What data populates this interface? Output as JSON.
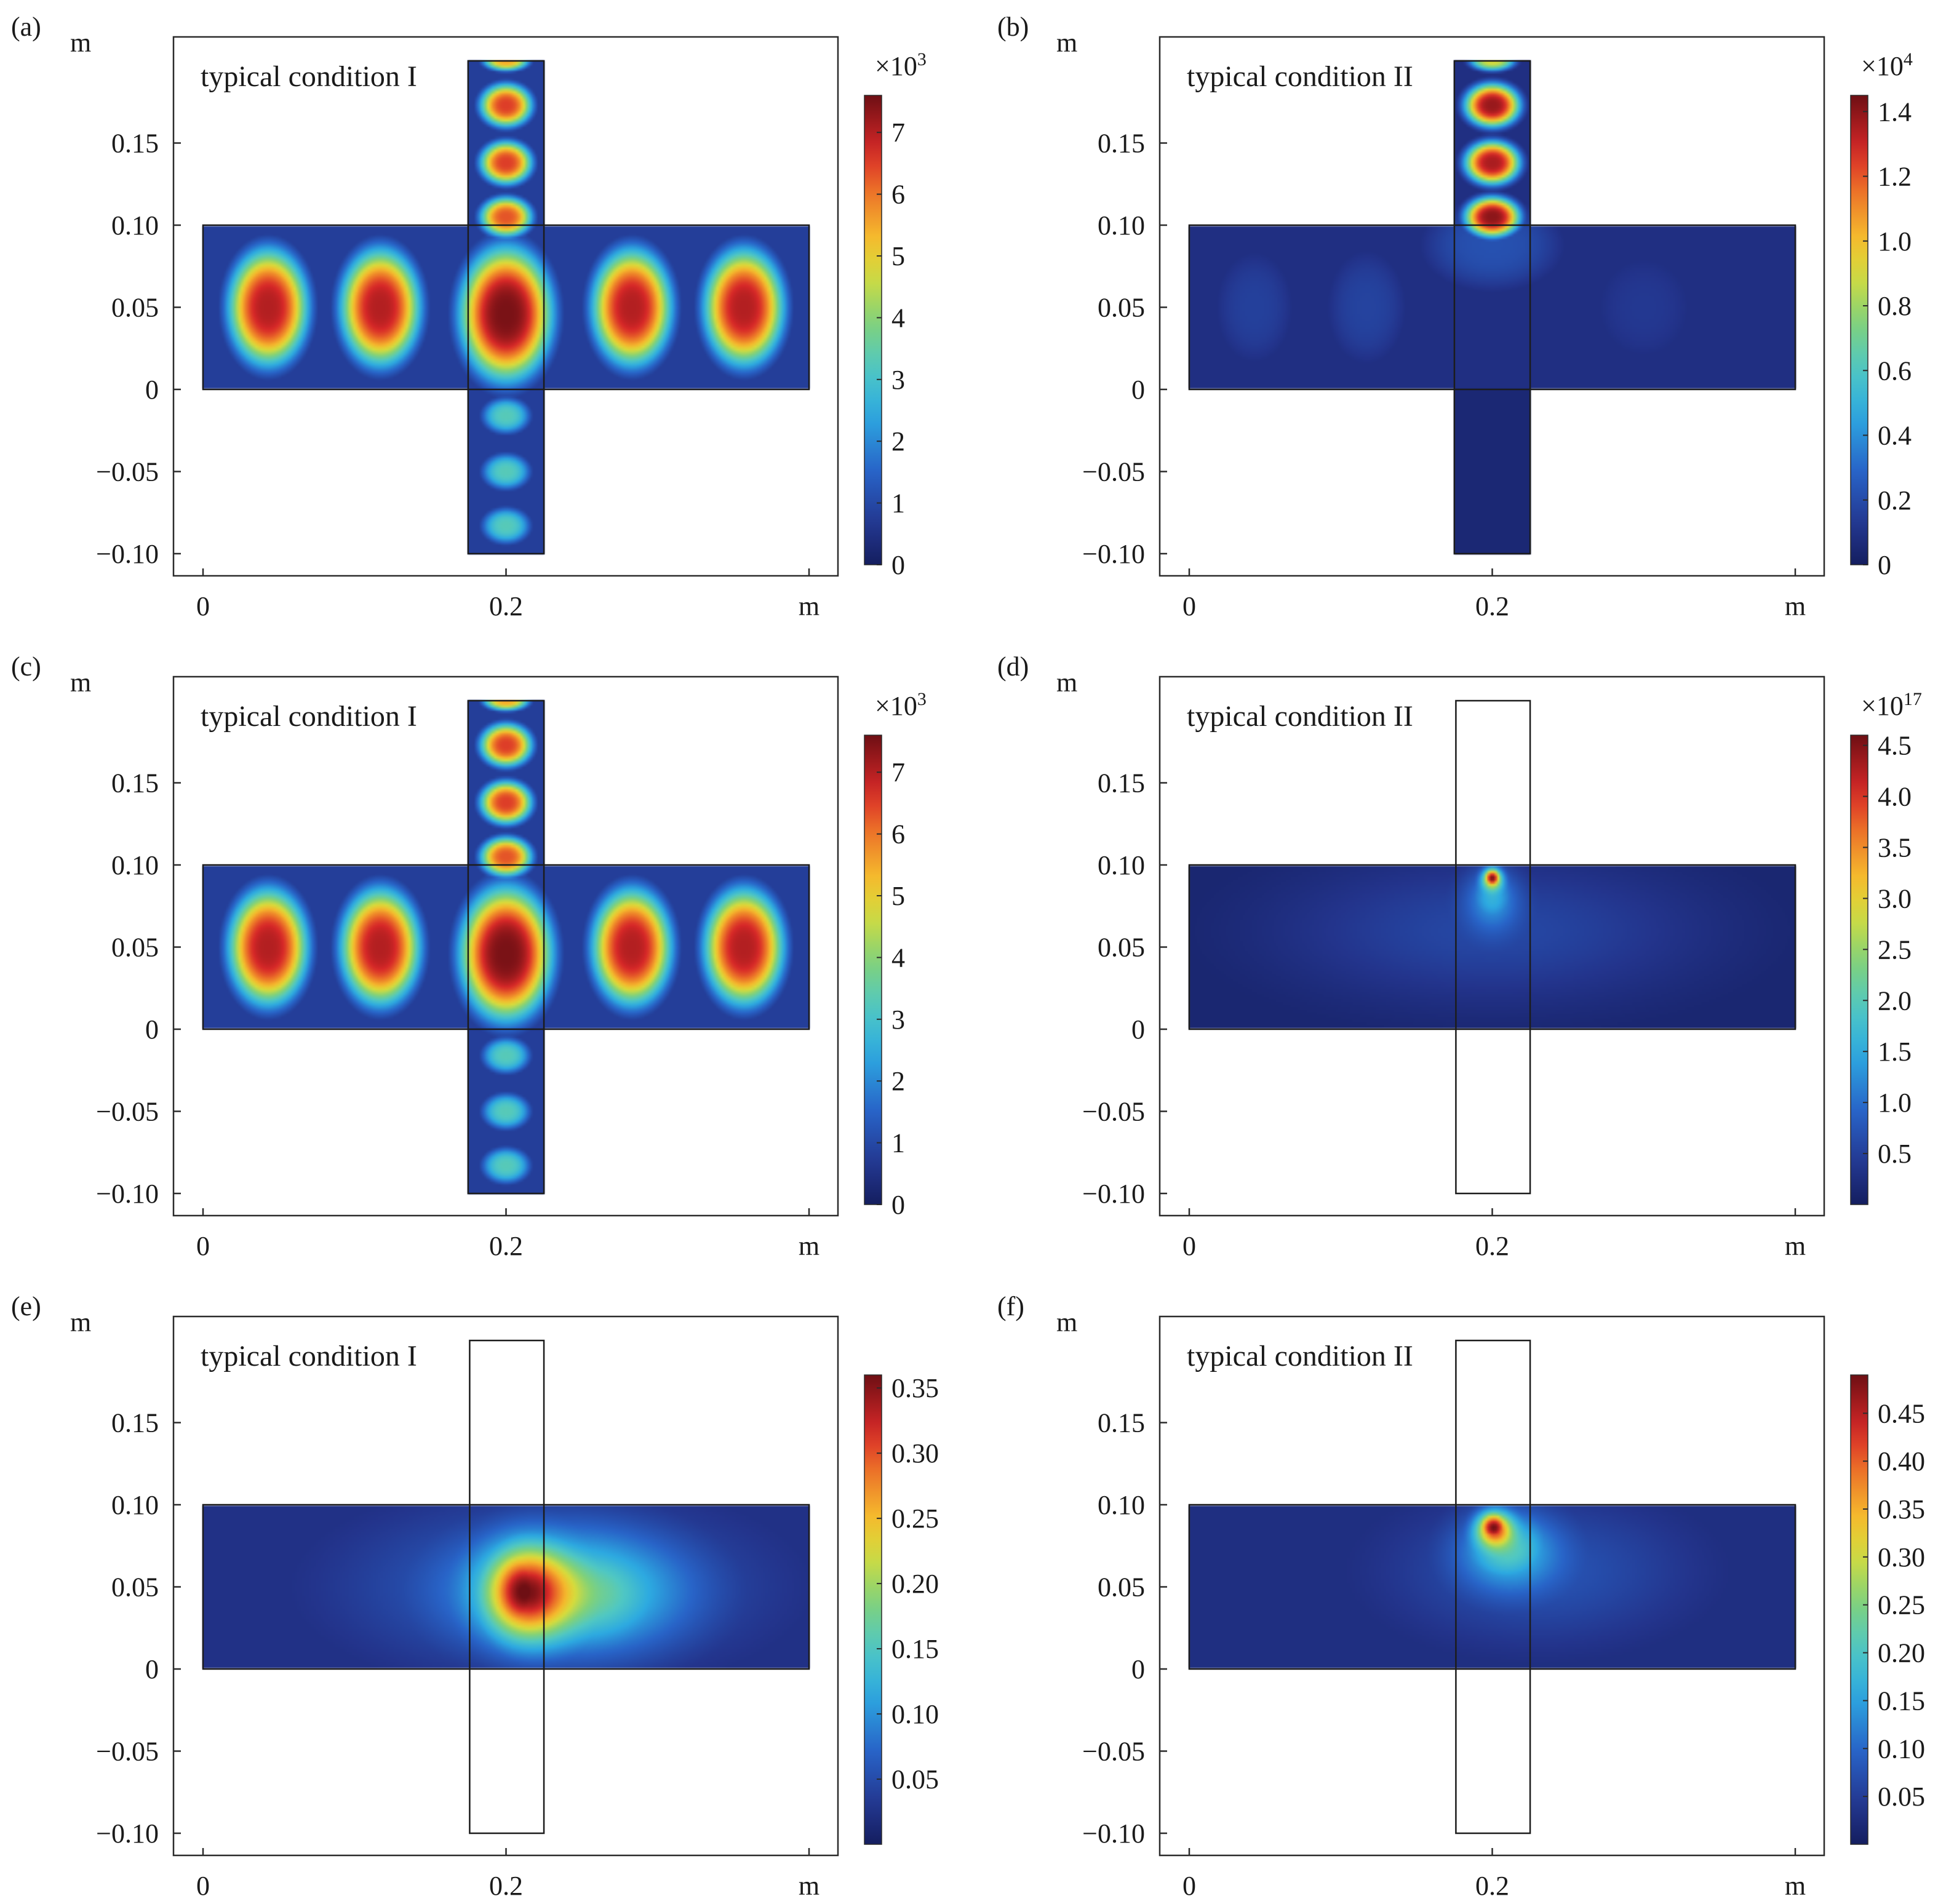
{
  "chart_data": [
    {
      "panel": "(a)",
      "type": "heatmap",
      "annotation": "typical condition I",
      "xlabel": "m",
      "ylabel": "m",
      "x_ticks": [
        "0",
        "0.2"
      ],
      "y_ticks": [
        "0.15",
        "0.10",
        "0.05",
        "0",
        "−0.05",
        "−0.10"
      ],
      "xlim": [
        -0.02,
        0.42
      ],
      "ylim": [
        -0.115,
        0.21
      ],
      "colorbar": {
        "min": 0,
        "max": 7600,
        "ticks": [
          "0",
          "1",
          "2",
          "3",
          "4",
          "5",
          "6",
          "7"
        ],
        "tick_values": [
          0,
          1000,
          2000,
          3000,
          4000,
          5000,
          6000,
          7000
        ],
        "multiplier_base": "×10",
        "multiplier_exp": "3"
      },
      "field": {
        "kind": "modes",
        "background": 800,
        "box": {
          "x": [
            0.0,
            0.4
          ],
          "y": [
            0.0,
            0.1
          ]
        },
        "tube": {
          "x": [
            0.175,
            0.225
          ],
          "y": [
            -0.1,
            0.2
          ],
          "top_open": true,
          "bottom_open": true
        },
        "hotspots": [
          {
            "x": 0.043,
            "y": 0.05,
            "rx": 0.026,
            "ry": 0.035,
            "peak": 7000
          },
          {
            "x": 0.117,
            "y": 0.05,
            "rx": 0.026,
            "ry": 0.035,
            "peak": 7000
          },
          {
            "x": 0.2,
            "y": 0.046,
            "rx": 0.03,
            "ry": 0.04,
            "peak": 7500
          },
          {
            "x": 0.283,
            "y": 0.05,
            "rx": 0.026,
            "ry": 0.035,
            "peak": 7000
          },
          {
            "x": 0.357,
            "y": 0.05,
            "rx": 0.026,
            "ry": 0.035,
            "peak": 7000
          },
          {
            "x": 0.2,
            "y": 0.105,
            "rx": 0.017,
            "ry": 0.012,
            "peak": 6300
          },
          {
            "x": 0.2,
            "y": 0.138,
            "rx": 0.017,
            "ry": 0.013,
            "peak": 6500
          },
          {
            "x": 0.2,
            "y": 0.173,
            "rx": 0.017,
            "ry": 0.013,
            "peak": 6500
          },
          {
            "x": 0.2,
            "y": 0.2,
            "rx": 0.015,
            "ry": 0.006,
            "peak": 5500
          },
          {
            "x": 0.2,
            "y": -0.016,
            "rx": 0.016,
            "ry": 0.011,
            "peak": 3300
          },
          {
            "x": 0.2,
            "y": -0.05,
            "rx": 0.016,
            "ry": 0.011,
            "peak": 3300
          },
          {
            "x": 0.2,
            "y": -0.083,
            "rx": 0.016,
            "ry": 0.011,
            "peak": 3300
          }
        ]
      }
    },
    {
      "panel": "(b)",
      "type": "heatmap",
      "annotation": "typical condition II",
      "xlabel": "m",
      "ylabel": "m",
      "x_ticks": [
        "0",
        "0.2"
      ],
      "y_ticks": [
        "0.15",
        "0.10",
        "0.05",
        "0",
        "−0.05",
        "−0.10"
      ],
      "xlim": [
        -0.02,
        0.42
      ],
      "ylim": [
        -0.115,
        0.21
      ],
      "colorbar": {
        "min": 0,
        "max": 14500,
        "ticks": [
          "0",
          "0.2",
          "0.4",
          "0.6",
          "0.8",
          "1.0",
          "1.2",
          "1.4"
        ],
        "tick_values": [
          0,
          2000,
          4000,
          6000,
          8000,
          10000,
          12000,
          14000
        ],
        "multiplier_base": "×10",
        "multiplier_exp": "4"
      },
      "field": {
        "kind": "modes",
        "background": 900,
        "box": {
          "x": [
            0.0,
            0.4
          ],
          "y": [
            0.0,
            0.1
          ]
        },
        "tube": {
          "x": [
            0.175,
            0.225
          ],
          "y": [
            -0.1,
            0.2
          ],
          "top_open": true,
          "bottom_open": false
        },
        "hotspots": [
          {
            "x": 0.2,
            "y": 0.105,
            "rx": 0.018,
            "ry": 0.012,
            "peak": 14000
          },
          {
            "x": 0.2,
            "y": 0.138,
            "rx": 0.018,
            "ry": 0.013,
            "peak": 13500
          },
          {
            "x": 0.2,
            "y": 0.173,
            "rx": 0.018,
            "ry": 0.013,
            "peak": 13800
          },
          {
            "x": 0.2,
            "y": 0.2,
            "rx": 0.015,
            "ry": 0.006,
            "peak": 9000
          },
          {
            "x": 0.2,
            "y": 0.088,
            "rx": 0.05,
            "ry": 0.03,
            "peak": 2200
          },
          {
            "x": 0.043,
            "y": 0.05,
            "rx": 0.03,
            "ry": 0.04,
            "peak": 1600
          },
          {
            "x": 0.117,
            "y": 0.05,
            "rx": 0.03,
            "ry": 0.04,
            "peak": 1700
          },
          {
            "x": 0.3,
            "y": 0.05,
            "rx": 0.04,
            "ry": 0.04,
            "peak": 1300
          }
        ]
      }
    },
    {
      "panel": "(c)",
      "type": "heatmap",
      "annotation": "typical condition I",
      "xlabel": "m",
      "ylabel": "m",
      "x_ticks": [
        "0",
        "0.2"
      ],
      "y_ticks": [
        "0.15",
        "0.10",
        "0.05",
        "0",
        "−0.05",
        "−0.10"
      ],
      "xlim": [
        -0.02,
        0.42
      ],
      "ylim": [
        -0.115,
        0.21
      ],
      "colorbar": {
        "min": 0,
        "max": 7600,
        "ticks": [
          "0",
          "1",
          "2",
          "3",
          "4",
          "5",
          "6",
          "7"
        ],
        "tick_values": [
          0,
          1000,
          2000,
          3000,
          4000,
          5000,
          6000,
          7000
        ],
        "multiplier_base": "×10",
        "multiplier_exp": "3"
      },
      "field": {
        "kind": "modes",
        "background": 800,
        "box": {
          "x": [
            0.0,
            0.4
          ],
          "y": [
            0.0,
            0.1
          ]
        },
        "tube": {
          "x": [
            0.175,
            0.225
          ],
          "y": [
            -0.1,
            0.2
          ],
          "top_open": true,
          "bottom_open": true
        },
        "hotspots": [
          {
            "x": 0.043,
            "y": 0.05,
            "rx": 0.026,
            "ry": 0.035,
            "peak": 7000
          },
          {
            "x": 0.117,
            "y": 0.05,
            "rx": 0.026,
            "ry": 0.035,
            "peak": 7000
          },
          {
            "x": 0.2,
            "y": 0.046,
            "rx": 0.03,
            "ry": 0.04,
            "peak": 7500
          },
          {
            "x": 0.283,
            "y": 0.05,
            "rx": 0.026,
            "ry": 0.035,
            "peak": 7000
          },
          {
            "x": 0.357,
            "y": 0.05,
            "rx": 0.026,
            "ry": 0.035,
            "peak": 7000
          },
          {
            "x": 0.2,
            "y": 0.105,
            "rx": 0.017,
            "ry": 0.012,
            "peak": 6300
          },
          {
            "x": 0.2,
            "y": 0.138,
            "rx": 0.017,
            "ry": 0.013,
            "peak": 6500
          },
          {
            "x": 0.2,
            "y": 0.173,
            "rx": 0.017,
            "ry": 0.013,
            "peak": 6500
          },
          {
            "x": 0.2,
            "y": 0.2,
            "rx": 0.015,
            "ry": 0.006,
            "peak": 5500
          },
          {
            "x": 0.2,
            "y": -0.016,
            "rx": 0.016,
            "ry": 0.011,
            "peak": 3300
          },
          {
            "x": 0.2,
            "y": -0.05,
            "rx": 0.016,
            "ry": 0.011,
            "peak": 3300
          },
          {
            "x": 0.2,
            "y": -0.083,
            "rx": 0.016,
            "ry": 0.011,
            "peak": 3300
          }
        ]
      }
    },
    {
      "panel": "(d)",
      "type": "heatmap",
      "annotation": "typical condition II",
      "xlabel": "m",
      "ylabel": "m",
      "x_ticks": [
        "0",
        "0.2"
      ],
      "y_ticks": [
        "0.15",
        "0.10",
        "0.05",
        "0",
        "−0.05",
        "−0.10"
      ],
      "xlim": [
        -0.02,
        0.42
      ],
      "ylim": [
        -0.115,
        0.21
      ],
      "colorbar": {
        "min": 0,
        "max": 4.6,
        "ticks": [
          "0.5",
          "1.0",
          "1.5",
          "2.0",
          "2.5",
          "3.0",
          "3.5",
          "4.0",
          "4.5"
        ],
        "tick_values": [
          0.5,
          1.0,
          1.5,
          2.0,
          2.5,
          3.0,
          3.5,
          4.0,
          4.5
        ],
        "multiplier_base": "×10",
        "multiplier_exp": "17"
      },
      "field": {
        "kind": "plasma",
        "background": 0.15,
        "box": {
          "x": [
            0.0,
            0.4
          ],
          "y": [
            0.0,
            0.1
          ]
        },
        "tube": {
          "x": [
            0.176,
            0.225
          ],
          "y": [
            -0.1,
            0.2
          ],
          "outline_only": true
        },
        "hotspots": [
          {
            "x": 0.2,
            "y": 0.092,
            "rx": 0.006,
            "ry": 0.006,
            "peak": 4.5
          },
          {
            "x": 0.2,
            "y": 0.08,
            "rx": 0.017,
            "ry": 0.019,
            "peak": 1.5
          },
          {
            "x": 0.2,
            "y": 0.06,
            "rx": 0.14,
            "ry": 0.045,
            "peak": 0.5
          }
        ]
      }
    },
    {
      "panel": "(e)",
      "type": "heatmap",
      "annotation": "typical condition I",
      "xlabel": "m",
      "ylabel": "m",
      "x_ticks": [
        "0",
        "0.2"
      ],
      "y_ticks": [
        "0.15",
        "0.10",
        "0.05",
        "0",
        "−0.05",
        "−0.10"
      ],
      "xlim": [
        -0.02,
        0.42
      ],
      "ylim": [
        -0.115,
        0.21
      ],
      "colorbar": {
        "min": 0,
        "max": 0.36,
        "ticks": [
          "0.05",
          "0.10",
          "0.15",
          "0.20",
          "0.25",
          "0.30",
          "0.35"
        ],
        "tick_values": [
          0.05,
          0.1,
          0.15,
          0.2,
          0.25,
          0.3,
          0.35
        ],
        "multiplier_base": "",
        "multiplier_exp": ""
      },
      "field": {
        "kind": "plasma",
        "background": 0.025,
        "box": {
          "x": [
            0.0,
            0.4
          ],
          "y": [
            0.0,
            0.1
          ]
        },
        "tube": {
          "x": [
            0.176,
            0.225
          ],
          "y": [
            -0.1,
            0.2
          ],
          "outline_only": true
        },
        "hotspots": [
          {
            "x": 0.212,
            "y": 0.047,
            "rx": 0.027,
            "ry": 0.029,
            "peak": 0.35
          },
          {
            "x": 0.245,
            "y": 0.046,
            "rx": 0.068,
            "ry": 0.036,
            "peak": 0.17
          },
          {
            "x": 0.23,
            "y": 0.05,
            "rx": 0.13,
            "ry": 0.05,
            "peak": 0.06
          }
        ]
      }
    },
    {
      "panel": "(f)",
      "type": "heatmap",
      "annotation": "typical condition II",
      "xlabel": "m",
      "ylabel": "m",
      "x_ticks": [
        "0",
        "0.2"
      ],
      "y_ticks": [
        "0.15",
        "0.10",
        "0.05",
        "0",
        "−0.05",
        "−0.10"
      ],
      "xlim": [
        -0.02,
        0.42
      ],
      "ylim": [
        -0.115,
        0.21
      ],
      "colorbar": {
        "min": 0,
        "max": 0.49,
        "ticks": [
          "0.05",
          "0.10",
          "0.15",
          "0.20",
          "0.25",
          "0.30",
          "0.35",
          "0.40",
          "0.45"
        ],
        "tick_values": [
          0.05,
          0.1,
          0.15,
          0.2,
          0.25,
          0.3,
          0.35,
          0.4,
          0.45
        ],
        "multiplier_base": "",
        "multiplier_exp": ""
      },
      "field": {
        "kind": "plasma",
        "background": 0.03,
        "box": {
          "x": [
            0.0,
            0.4
          ],
          "y": [
            0.0,
            0.1
          ]
        },
        "tube": {
          "x": [
            0.176,
            0.225
          ],
          "y": [
            -0.1,
            0.2
          ],
          "outline_only": true
        },
        "hotspots": [
          {
            "x": 0.201,
            "y": 0.086,
            "rx": 0.011,
            "ry": 0.01,
            "peak": 0.47
          },
          {
            "x": 0.21,
            "y": 0.073,
            "rx": 0.032,
            "ry": 0.024,
            "peak": 0.2
          },
          {
            "x": 0.23,
            "y": 0.06,
            "rx": 0.1,
            "ry": 0.045,
            "peak": 0.06
          }
        ]
      }
    }
  ]
}
